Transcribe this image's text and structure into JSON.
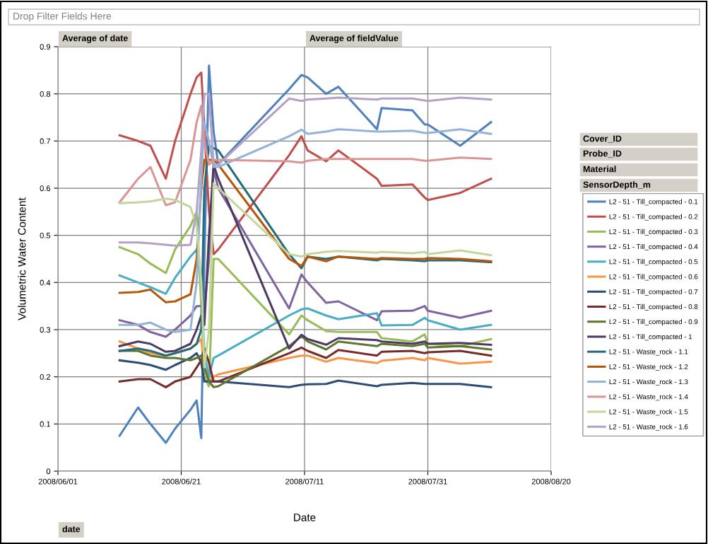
{
  "chart_data": {
    "type": "line",
    "xlabel": "Date",
    "ylabel": "Volumetric Water Content",
    "annotations": [
      "Drop Filter Fields Here",
      "Average of date",
      "Average of fieldValue",
      "Cover_ID",
      "Probe_ID",
      "Material",
      "SensorDepth_m",
      "date"
    ],
    "x": [
      "2008-06-11",
      "2008-06-14",
      "2008-06-16",
      "2008-06-18T12:00",
      "2008-06-20",
      "2008-06-22T12:00",
      "2008-06-23T12:00",
      "2008-06-24T06:00",
      "2008-06-24T18:00",
      "2008-06-25T12:00",
      "2008-06-26T06:00",
      "2008-06-27",
      "2008-07-08T12:00",
      "2008-07-10T12:00",
      "2008-07-11T12:00",
      "2008-07-14T12:00",
      "2008-07-16T12:00",
      "2008-07-22T18:00",
      "2008-07-23T12:00",
      "2008-07-28T12:00",
      "2008-07-30T12:00",
      "2008-07-31",
      "2008-08-05T06:00",
      "2008-08-10T06:00"
    ],
    "xlim": [
      "2008-06-01",
      "2008-08-20"
    ],
    "xticks": [
      {
        "value": "2008-06-01",
        "label": "2008/06/01"
      },
      {
        "value": "2008-06-21",
        "label": "2008/06/21"
      },
      {
        "value": "2008-07-11",
        "label": "2008/07/11"
      },
      {
        "value": "2008-07-31",
        "label": "2008/07/31"
      },
      {
        "value": "2008-08-20",
        "label": "2008/08/20"
      }
    ],
    "ylim": [
      0,
      0.9
    ],
    "yticks": [
      0,
      0.1,
      0.2,
      0.3,
      0.4,
      0.5,
      0.6,
      0.7,
      0.8,
      0.9
    ],
    "grid": true,
    "legend": "right",
    "line_style": "solid",
    "marker": "none",
    "series": [
      {
        "name": "L2 - 51 - Till_compacted - 0.1",
        "color": "#4f81bd",
        "values": [
          0.075,
          0.135,
          0.1,
          0.06,
          0.09,
          0.13,
          0.15,
          0.07,
          0.45,
          0.86,
          0.72,
          0.65,
          0.81,
          0.84,
          0.835,
          0.8,
          0.815,
          0.725,
          0.77,
          0.765,
          0.735,
          0.735,
          0.69,
          0.74
        ]
      },
      {
        "name": "L2 - 51 - Till_compacted - 0.2",
        "color": "#c0504d",
        "values": [
          0.712,
          0.7,
          0.69,
          0.62,
          0.7,
          0.8,
          0.835,
          0.845,
          0.73,
          0.55,
          0.46,
          0.47,
          0.67,
          0.71,
          0.68,
          0.657,
          0.68,
          0.62,
          0.605,
          0.608,
          0.58,
          0.575,
          0.59,
          0.62
        ]
      },
      {
        "name": "L2 - 51 - Till_compacted - 0.3",
        "color": "#9bbb59",
        "values": [
          0.475,
          0.46,
          0.44,
          0.42,
          0.47,
          0.52,
          0.55,
          0.35,
          0.2,
          0.18,
          0.45,
          0.45,
          0.29,
          0.33,
          0.32,
          0.297,
          0.295,
          0.295,
          0.282,
          0.275,
          0.29,
          0.27,
          0.265,
          0.28
        ]
      },
      {
        "name": "L2 - 51 - Till_compacted - 0.4",
        "color": "#8064a2",
        "values": [
          0.32,
          0.31,
          0.295,
          0.285,
          0.3,
          0.33,
          0.35,
          0.35,
          0.34,
          0.45,
          0.64,
          0.6,
          0.345,
          0.417,
          0.4,
          0.357,
          0.36,
          0.32,
          0.339,
          0.34,
          0.35,
          0.34,
          0.325,
          0.34
        ]
      },
      {
        "name": "L2 - 51 - Till_compacted - 0.5",
        "color": "#4bacc6",
        "values": [
          0.415,
          0.4,
          0.39,
          0.376,
          0.41,
          0.455,
          0.47,
          0.4,
          0.25,
          0.2,
          0.24,
          0.245,
          0.33,
          0.343,
          0.345,
          0.33,
          0.322,
          0.335,
          0.309,
          0.31,
          0.325,
          0.32,
          0.3,
          0.31
        ]
      },
      {
        "name": "L2 - 51 - Till_compacted - 0.6",
        "color": "#f79646",
        "values": [
          0.275,
          0.26,
          0.25,
          0.245,
          0.25,
          0.26,
          0.27,
          0.28,
          0.22,
          0.19,
          0.2,
          0.205,
          0.24,
          0.245,
          0.245,
          0.232,
          0.24,
          0.229,
          0.234,
          0.24,
          0.235,
          0.24,
          0.228,
          0.232
        ]
      },
      {
        "name": "L2 - 51 - Till_compacted - 0.7",
        "color": "#2c4d75",
        "values": [
          0.235,
          0.23,
          0.225,
          0.215,
          0.225,
          0.24,
          0.25,
          0.23,
          0.19,
          0.19,
          0.19,
          0.19,
          0.178,
          0.183,
          0.184,
          0.185,
          0.192,
          0.18,
          0.183,
          0.187,
          0.185,
          0.185,
          0.185,
          0.178
        ]
      },
      {
        "name": "L2 - 51 - Till_compacted - 0.8",
        "color": "#772c2a",
        "values": [
          0.19,
          0.195,
          0.195,
          0.178,
          0.19,
          0.2,
          0.22,
          0.235,
          0.26,
          0.23,
          0.19,
          0.19,
          0.25,
          0.262,
          0.255,
          0.24,
          0.257,
          0.245,
          0.253,
          0.255,
          0.25,
          0.252,
          0.255,
          0.245
        ]
      },
      {
        "name": "L2 - 51 - Till_compacted - 0.9",
        "color": "#5f7530",
        "values": [
          0.255,
          0.255,
          0.245,
          0.24,
          0.24,
          0.235,
          0.24,
          0.245,
          0.22,
          0.19,
          0.178,
          0.18,
          0.265,
          0.286,
          0.275,
          0.258,
          0.275,
          0.265,
          0.27,
          0.265,
          0.27,
          0.262,
          0.265,
          0.258
        ]
      },
      {
        "name": "L2 - 51 - Till_compacted - 1",
        "color": "#4d3b62",
        "values": [
          0.265,
          0.275,
          0.27,
          0.253,
          0.255,
          0.27,
          0.3,
          0.33,
          0.31,
          0.5,
          0.65,
          0.62,
          0.26,
          0.289,
          0.28,
          0.268,
          0.282,
          0.278,
          0.275,
          0.27,
          0.275,
          0.27,
          0.272,
          0.268
        ]
      },
      {
        "name": "L2 - 51 - Waste_rock - 1.1",
        "color": "#276a7c",
        "values": [
          0.255,
          0.26,
          0.255,
          0.245,
          0.25,
          0.26,
          0.27,
          0.3,
          0.6,
          0.69,
          0.685,
          0.68,
          0.46,
          0.43,
          0.455,
          0.45,
          0.455,
          0.447,
          0.45,
          0.447,
          0.445,
          0.447,
          0.447,
          0.443
        ]
      },
      {
        "name": "L2 - 51 - Waste_rock - 1.2",
        "color": "#b65708",
        "values": [
          0.378,
          0.38,
          0.385,
          0.358,
          0.36,
          0.375,
          0.45,
          0.6,
          0.66,
          0.66,
          0.66,
          0.65,
          0.45,
          0.435,
          0.455,
          0.445,
          0.455,
          0.45,
          0.452,
          0.45,
          0.45,
          0.452,
          0.45,
          0.445
        ]
      },
      {
        "name": "L2 - 51 - Waste_rock - 1.3",
        "color": "#95b3d7",
        "values": [
          0.31,
          0.31,
          0.315,
          0.3,
          0.295,
          0.3,
          0.4,
          0.62,
          0.74,
          0.7,
          0.645,
          0.645,
          0.71,
          0.724,
          0.715,
          0.72,
          0.725,
          0.72,
          0.72,
          0.722,
          0.717,
          0.717,
          0.725,
          0.715
        ]
      },
      {
        "name": "L2 - 51 - Waste_rock - 1.4",
        "color": "#d99694",
        "values": [
          0.57,
          0.62,
          0.645,
          0.564,
          0.57,
          0.66,
          0.74,
          0.775,
          0.7,
          0.65,
          0.66,
          0.66,
          0.657,
          0.654,
          0.658,
          0.662,
          0.662,
          0.662,
          0.662,
          0.662,
          0.658,
          0.658,
          0.665,
          0.662
        ]
      },
      {
        "name": "L2 - 51 - Waste_rock - 1.5",
        "color": "#c3d69b",
        "values": [
          0.568,
          0.57,
          0.572,
          0.578,
          0.575,
          0.56,
          0.52,
          0.4,
          0.22,
          0.3,
          0.61,
          0.6,
          0.46,
          0.455,
          0.46,
          0.465,
          0.467,
          0.463,
          0.465,
          0.462,
          0.465,
          0.46,
          0.468,
          0.458
        ]
      },
      {
        "name": "L2 - 51 - Waste_rock - 1.6",
        "color": "#b3a2c7",
        "values": [
          0.485,
          0.485,
          0.483,
          0.48,
          0.478,
          0.48,
          0.55,
          0.68,
          0.8,
          0.8,
          0.65,
          0.65,
          0.79,
          0.785,
          0.788,
          0.79,
          0.792,
          0.788,
          0.79,
          0.79,
          0.786,
          0.785,
          0.792,
          0.788
        ]
      }
    ]
  }
}
